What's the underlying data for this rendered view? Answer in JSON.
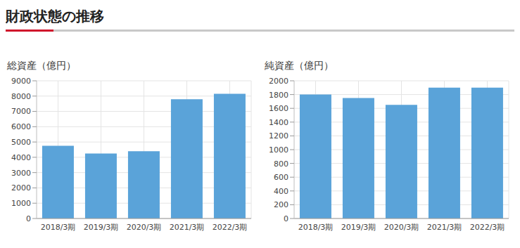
{
  "title": "財政状態の推移",
  "chart_data": [
    {
      "type": "bar",
      "title": "総資産（億円）",
      "categories": [
        "2018/3期",
        "2019/3期",
        "2020/3期",
        "2021/3期",
        "2022/3期"
      ],
      "values": [
        4750,
        4250,
        4400,
        7800,
        8150
      ],
      "color": "#5aa3d9",
      "ylim": [
        0,
        9000
      ],
      "yticks": [
        0,
        1000,
        2000,
        3000,
        4000,
        5000,
        6000,
        7000,
        8000,
        9000
      ],
      "grid": true
    },
    {
      "type": "bar",
      "title": "純資産（億円）",
      "categories": [
        "2018/3期",
        "2019/3期",
        "2020/3期",
        "2021/3期",
        "2022/3期"
      ],
      "values": [
        1800,
        1750,
        1650,
        1900,
        1900
      ],
      "color": "#5aa3d9",
      "ylim": [
        0,
        2000
      ],
      "yticks": [
        0,
        200,
        400,
        600,
        800,
        1000,
        1200,
        1400,
        1600,
        1800,
        2000
      ],
      "grid": true
    }
  ]
}
